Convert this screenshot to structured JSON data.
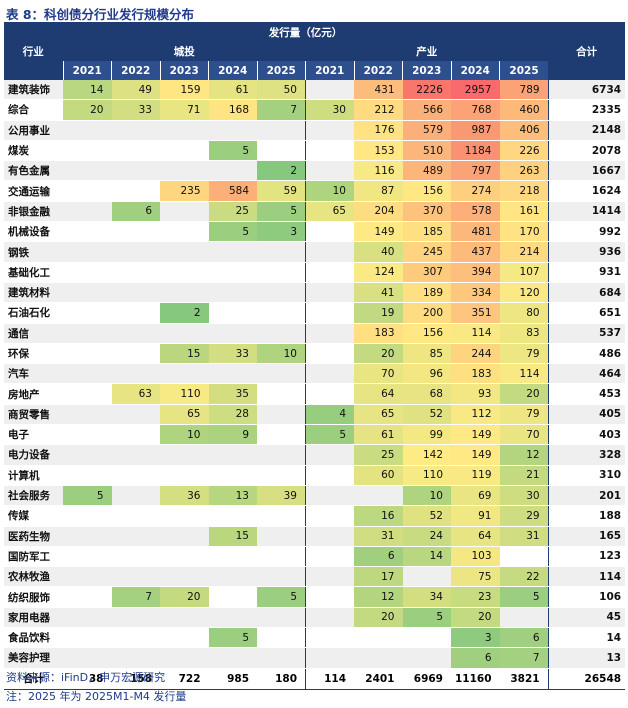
{
  "title": "表 8：科创债分行业发行规模分布",
  "header": {
    "industry": "行业",
    "amount": "发行量（亿元）",
    "group_a": "城投",
    "group_b": "产业",
    "total": "合计",
    "years": [
      "2021",
      "2022",
      "2023",
      "2024",
      "2025"
    ]
  },
  "rows": [
    {
      "name": "建筑装饰",
      "a": [
        "14",
        "49",
        "159",
        "61",
        "50"
      ],
      "b": [
        "",
        "431",
        "2226",
        "2957",
        "789"
      ],
      "total": "6734"
    },
    {
      "name": "综合",
      "a": [
        "20",
        "33",
        "71",
        "168",
        "7"
      ],
      "b": [
        "30",
        "212",
        "566",
        "768",
        "460"
      ],
      "total": "2335"
    },
    {
      "name": "公用事业",
      "a": [
        "",
        "",
        "",
        "",
        ""
      ],
      "b": [
        "",
        "176",
        "579",
        "987",
        "406"
      ],
      "total": "2148"
    },
    {
      "name": "煤炭",
      "a": [
        "",
        "",
        "",
        "5",
        ""
      ],
      "b": [
        "",
        "153",
        "510",
        "1184",
        "226"
      ],
      "total": "2078"
    },
    {
      "name": "有色金属",
      "a": [
        "",
        "",
        "",
        "",
        "2"
      ],
      "b": [
        "",
        "116",
        "489",
        "797",
        "263"
      ],
      "total": "1667"
    },
    {
      "name": "交通运输",
      "a": [
        "",
        "",
        "235",
        "584",
        "59"
      ],
      "b": [
        "10",
        "87",
        "156",
        "274",
        "218"
      ],
      "total": "1624"
    },
    {
      "name": "非银金融",
      "a": [
        "",
        "6",
        "",
        "25",
        "5"
      ],
      "b": [
        "65",
        "204",
        "370",
        "578",
        "161"
      ],
      "total": "1414"
    },
    {
      "name": "机械设备",
      "a": [
        "",
        "",
        "",
        "5",
        "3"
      ],
      "b": [
        "",
        "149",
        "185",
        "481",
        "170"
      ],
      "total": "992"
    },
    {
      "name": "钢铁",
      "a": [
        "",
        "",
        "",
        "",
        ""
      ],
      "b": [
        "",
        "40",
        "245",
        "437",
        "214"
      ],
      "total": "936"
    },
    {
      "name": "基础化工",
      "a": [
        "",
        "",
        "",
        "",
        ""
      ],
      "b": [
        "",
        "124",
        "307",
        "394",
        "107"
      ],
      "total": "931"
    },
    {
      "name": "建筑材料",
      "a": [
        "",
        "",
        "",
        "",
        ""
      ],
      "b": [
        "",
        "41",
        "189",
        "334",
        "120"
      ],
      "total": "684"
    },
    {
      "name": "石油石化",
      "a": [
        "",
        "",
        "2",
        "",
        ""
      ],
      "b": [
        "",
        "19",
        "200",
        "351",
        "80"
      ],
      "total": "651"
    },
    {
      "name": "通信",
      "a": [
        "",
        "",
        "",
        "",
        ""
      ],
      "b": [
        "",
        "183",
        "156",
        "114",
        "83"
      ],
      "total": "537"
    },
    {
      "name": "环保",
      "a": [
        "",
        "",
        "15",
        "33",
        "10"
      ],
      "b": [
        "",
        "20",
        "85",
        "244",
        "79"
      ],
      "total": "486"
    },
    {
      "name": "汽车",
      "a": [
        "",
        "",
        "",
        "",
        ""
      ],
      "b": [
        "",
        "70",
        "96",
        "183",
        "114"
      ],
      "total": "464"
    },
    {
      "name": "房地产",
      "a": [
        "",
        "63",
        "110",
        "35",
        ""
      ],
      "b": [
        "",
        "64",
        "68",
        "93",
        "20"
      ],
      "total": "453"
    },
    {
      "name": "商贸零售",
      "a": [
        "",
        "",
        "65",
        "28",
        ""
      ],
      "b": [
        "4",
        "65",
        "52",
        "112",
        "79"
      ],
      "total": "405"
    },
    {
      "name": "电子",
      "a": [
        "",
        "",
        "10",
        "9",
        ""
      ],
      "b": [
        "5",
        "61",
        "99",
        "149",
        "70"
      ],
      "total": "403"
    },
    {
      "name": "电力设备",
      "a": [
        "",
        "",
        "",
        "",
        ""
      ],
      "b": [
        "",
        "25",
        "142",
        "149",
        "12"
      ],
      "total": "328"
    },
    {
      "name": "计算机",
      "a": [
        "",
        "",
        "",
        "",
        ""
      ],
      "b": [
        "",
        "60",
        "110",
        "119",
        "21"
      ],
      "total": "310"
    },
    {
      "name": "社会服务",
      "a": [
        "5",
        "",
        "36",
        "13",
        "39"
      ],
      "b": [
        "",
        "",
        "10",
        "69",
        "30"
      ],
      "total": "201"
    },
    {
      "name": "传媒",
      "a": [
        "",
        "",
        "",
        "",
        ""
      ],
      "b": [
        "",
        "16",
        "52",
        "91",
        "29"
      ],
      "total": "188"
    },
    {
      "name": "医药生物",
      "a": [
        "",
        "",
        "",
        "15",
        ""
      ],
      "b": [
        "",
        "31",
        "24",
        "64",
        "31"
      ],
      "total": "165"
    },
    {
      "name": "国防军工",
      "a": [
        "",
        "",
        "",
        "",
        ""
      ],
      "b": [
        "",
        "6",
        "14",
        "103",
        ""
      ],
      "total": "123"
    },
    {
      "name": "农林牧渔",
      "a": [
        "",
        "",
        "",
        "",
        ""
      ],
      "b": [
        "",
        "17",
        "",
        "75",
        "22"
      ],
      "total": "114"
    },
    {
      "name": "纺织服饰",
      "a": [
        "",
        "7",
        "20",
        "",
        "5"
      ],
      "b": [
        "",
        "12",
        "34",
        "23",
        "5"
      ],
      "total": "106"
    },
    {
      "name": "家用电器",
      "a": [
        "",
        "",
        "",
        "",
        ""
      ],
      "b": [
        "",
        "20",
        "5",
        "20",
        ""
      ],
      "total": "45"
    },
    {
      "name": "食品饮料",
      "a": [
        "",
        "",
        "",
        "5",
        ""
      ],
      "b": [
        "",
        "",
        "",
        "3",
        "6"
      ],
      "total": "14"
    },
    {
      "name": "美容护理",
      "a": [
        "",
        "",
        "",
        "",
        ""
      ],
      "b": [
        "",
        "",
        "",
        "6",
        "7"
      ],
      "total": "13"
    }
  ],
  "footer": {
    "label": "合计",
    "a": [
      "38",
      "158",
      "722",
      "985",
      "180"
    ],
    "b": [
      "114",
      "2401",
      "6969",
      "11160",
      "3821"
    ],
    "total": "26548"
  },
  "notes": {
    "source": "资料来源：iFinD，申万宏源研究",
    "remark": "注：2025 年为 2025M1-M4 发行量"
  },
  "colors": {
    "header_bg": "#1e3c72",
    "heat_low": "#63be7b",
    "heat_mid": "#ffeb84",
    "heat_high": "#f8696b"
  }
}
